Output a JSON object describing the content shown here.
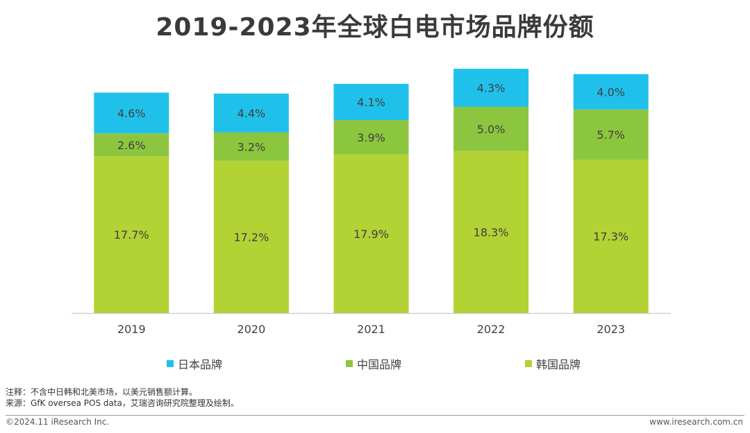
{
  "title": "2019-2023年全球白电市场品牌份额",
  "chart_data": {
    "type": "bar",
    "stacked": true,
    "categories": [
      "2019",
      "2020",
      "2021",
      "2022",
      "2023"
    ],
    "series": [
      {
        "name": "韩国品牌",
        "color": "#b3d234",
        "values": [
          17.7,
          17.2,
          17.9,
          18.3,
          17.3
        ],
        "labels": [
          "17.7%",
          "17.2%",
          "17.9%",
          "18.3%",
          "17.3%"
        ]
      },
      {
        "name": "中国品牌",
        "color": "#8cc63f",
        "values": [
          2.6,
          3.2,
          3.9,
          5.0,
          5.7
        ],
        "labels": [
          "2.6%",
          "3.2%",
          "3.9%",
          "5.0%",
          "5.7%"
        ]
      },
      {
        "name": "日本品牌",
        "color": "#1fc1eb",
        "values": [
          4.6,
          4.4,
          4.1,
          4.3,
          4.0
        ],
        "labels": [
          "4.6%",
          "4.4%",
          "4.1%",
          "4.3%",
          "4.0%"
        ]
      }
    ],
    "legend_order": [
      "日本品牌",
      "中国品牌",
      "韩国品牌"
    ],
    "legend_position": "bottom",
    "ylim": [
      0,
      28
    ],
    "grid": false
  },
  "notes": {
    "note": "注释：不含中日韩和北美市场，以美元销售额计算。",
    "source": "来源：GfK oversea POS data，艾瑞咨询研究院整理及绘制。"
  },
  "footer": {
    "copyright": "©2024.11 iResearch Inc.",
    "website": "www.iresearch.com.cn"
  }
}
